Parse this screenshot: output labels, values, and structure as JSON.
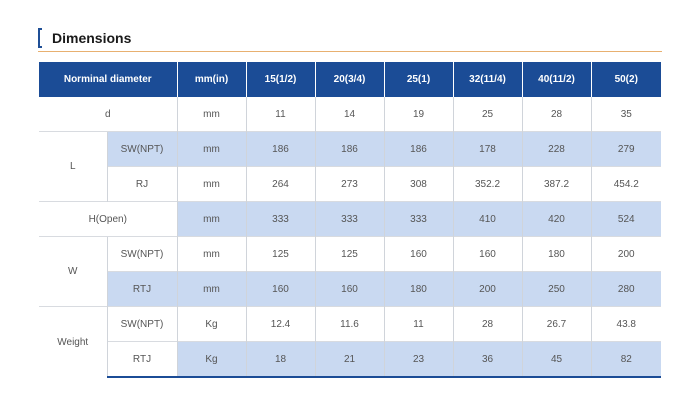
{
  "title": "Dimensions",
  "colors": {
    "header_bg": "#1b4c96",
    "shade": "#c9d9f1",
    "accent_line": "#e8b070"
  },
  "table": {
    "headers": [
      "Norminal diameter",
      "mm(in)",
      "15(1/2)",
      "20(3/4)",
      "25(1)",
      "32(11/4)",
      "40(11/2)",
      "50(2)"
    ],
    "rows": {
      "d": {
        "label": "d",
        "unit": "mm",
        "values": [
          "11",
          "14",
          "19",
          "25",
          "28",
          "35"
        ]
      },
      "l_sw": {
        "group": "L",
        "sub": "SW(NPT)",
        "unit": "mm",
        "values": [
          "186",
          "186",
          "186",
          "178",
          "228",
          "279"
        ]
      },
      "l_rj": {
        "sub": "RJ",
        "unit": "mm",
        "values": [
          "264",
          "273",
          "308",
          "352.2",
          "387.2",
          "454.2"
        ]
      },
      "h_open": {
        "label": "H(Open)",
        "unit": "mm",
        "values": [
          "333",
          "333",
          "333",
          "410",
          "420",
          "524"
        ]
      },
      "w_sw": {
        "group": "W",
        "sub": "SW(NPT)",
        "unit": "mm",
        "values": [
          "125",
          "125",
          "160",
          "160",
          "180",
          "200"
        ]
      },
      "w_rtj": {
        "sub": "RTJ",
        "unit": "mm",
        "values": [
          "160",
          "160",
          "180",
          "200",
          "250",
          "280"
        ]
      },
      "weight_sw": {
        "group": "Weight",
        "sub": "SW(NPT)",
        "unit": "Kg",
        "values": [
          "12.4",
          "11.6",
          "11",
          "28",
          "26.7",
          "43.8"
        ]
      },
      "weight_rtj": {
        "sub": "RTJ",
        "unit": "Kg",
        "values": [
          "18",
          "21",
          "23",
          "36",
          "45",
          "82"
        ]
      }
    }
  }
}
